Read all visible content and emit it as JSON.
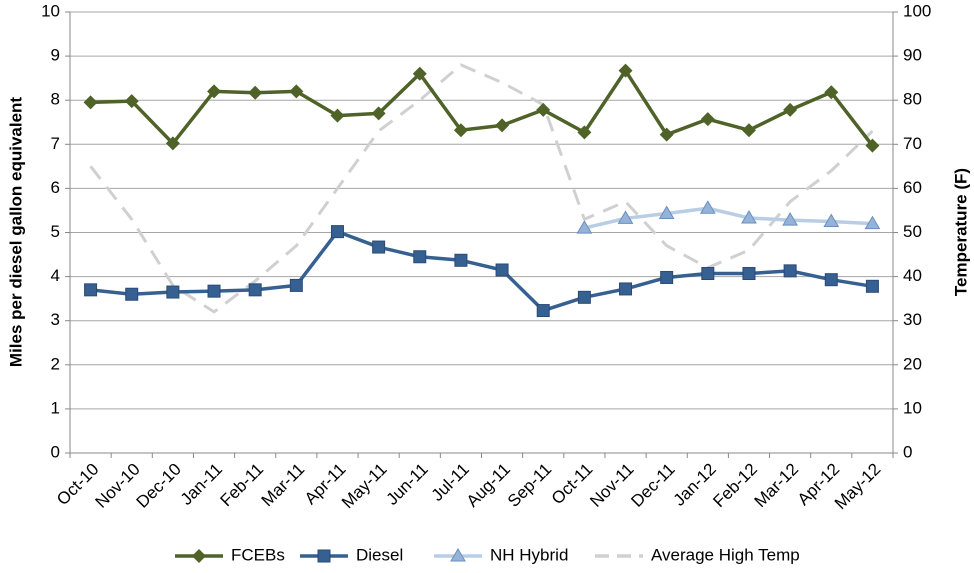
{
  "chart_data": {
    "type": "line",
    "categories": [
      "Oct-10",
      "Nov-10",
      "Dec-10",
      "Jan-11",
      "Feb-11",
      "Mar-11",
      "Apr-11",
      "May-11",
      "Jun-11",
      "Jul-11",
      "Aug-11",
      "Sep-11",
      "Oct-11",
      "Nov-11",
      "Dec-11",
      "Jan-12",
      "Feb-12",
      "Mar-12",
      "Apr-12",
      "May-12"
    ],
    "y_label": "Miles per diesel gallon equivalent",
    "y2_label": "Temperature (F)",
    "ylim": [
      0,
      10
    ],
    "yticks": [
      0,
      1,
      2,
      3,
      4,
      5,
      6,
      7,
      8,
      9,
      10
    ],
    "y2lim": [
      0,
      100
    ],
    "y2ticks": [
      0,
      10,
      20,
      30,
      40,
      50,
      60,
      70,
      80,
      90,
      100
    ],
    "grid": true,
    "legend": "bottom",
    "series": [
      {
        "name": "FCEBs",
        "color": "#4f6228",
        "marker": "diamond",
        "values": [
          7.95,
          7.98,
          7.02,
          8.2,
          8.17,
          8.2,
          7.65,
          7.7,
          8.6,
          7.32,
          7.43,
          7.78,
          7.27,
          8.67,
          7.22,
          7.57,
          7.32,
          7.78,
          8.18,
          6.97
        ]
      },
      {
        "name": "Diesel",
        "color": "#376092",
        "marker": "square",
        "values": [
          3.7,
          3.6,
          3.65,
          3.67,
          3.7,
          3.8,
          5.02,
          4.67,
          4.45,
          4.37,
          4.15,
          3.23,
          3.53,
          3.72,
          3.98,
          4.07,
          4.07,
          4.13,
          3.93,
          3.78
        ]
      },
      {
        "name": "NH Hybrid",
        "color": "#b9cde5",
        "marker": "triangle",
        "values": [
          null,
          null,
          null,
          null,
          null,
          null,
          null,
          null,
          null,
          null,
          null,
          null,
          5.1,
          5.32,
          5.43,
          5.55,
          5.33,
          5.28,
          5.25,
          5.2
        ]
      },
      {
        "name": "Average High Temp",
        "color": "#d0d0d0",
        "dashed": true,
        "axis": "y2",
        "values": [
          65,
          53,
          38,
          32,
          39,
          47,
          60,
          73,
          80,
          88,
          84,
          79,
          53,
          57,
          47,
          42,
          46,
          57,
          64,
          73
        ]
      }
    ]
  }
}
